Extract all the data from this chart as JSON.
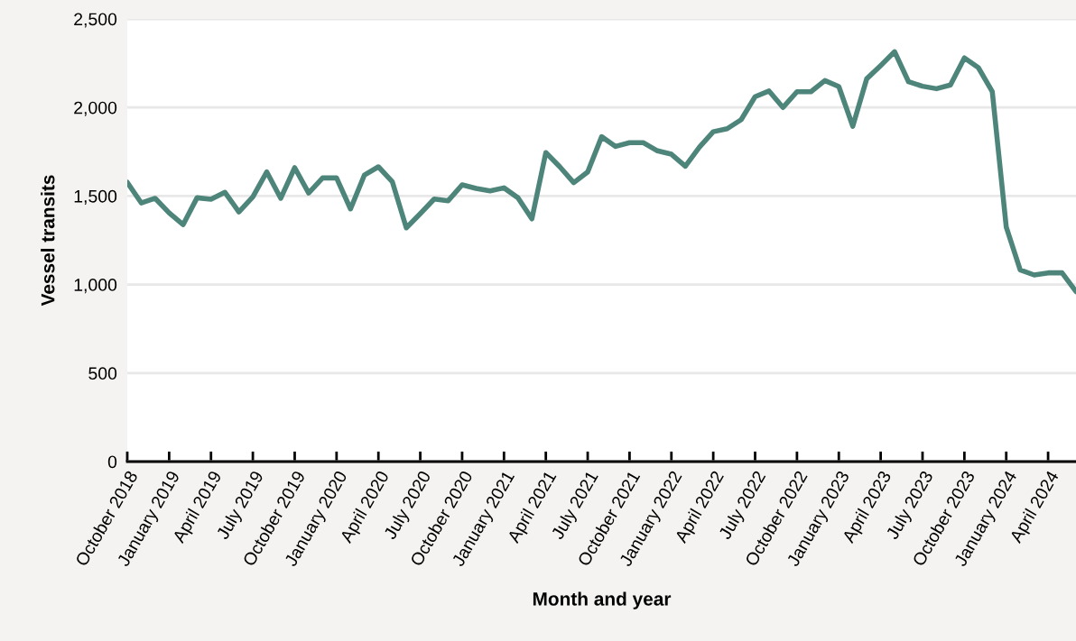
{
  "chart_data": {
    "type": "line",
    "xlabel": "Month and year",
    "ylabel": "Vessel transits",
    "categories": [
      "October 2018",
      null,
      null,
      "January 2019",
      null,
      null,
      "April 2019",
      null,
      null,
      "July 2019",
      null,
      null,
      "October 2019",
      null,
      null,
      "January 2020",
      null,
      null,
      "April 2020",
      null,
      null,
      "July 2020",
      null,
      null,
      "October 2020",
      null,
      null,
      "January 2021",
      null,
      null,
      "April 2021",
      null,
      null,
      "July 2021",
      null,
      null,
      "October 2021",
      null,
      null,
      "January 2022",
      null,
      null,
      "April 2022",
      null,
      null,
      "July 2022",
      null,
      null,
      "October 2022",
      null,
      null,
      "January 2023",
      null,
      null,
      "April 2023",
      null,
      null,
      "July 2023",
      null,
      null,
      "October 2023",
      null,
      null,
      "January 2024",
      null,
      null,
      "April 2024",
      null,
      null
    ],
    "series": [
      {
        "color": "#4e857b",
        "values": [
          1577,
          1461,
          1487,
          1405,
          1338,
          1490,
          1482,
          1521,
          1410,
          1495,
          1636,
          1487,
          1660,
          1517,
          1602,
          1602,
          1427,
          1619,
          1665,
          1580,
          1320,
          1400,
          1483,
          1473,
          1563,
          1543,
          1529,
          1546,
          1490,
          1371,
          1745,
          1665,
          1575,
          1636,
          1835,
          1780,
          1801,
          1801,
          1755,
          1736,
          1668,
          1775,
          1863,
          1880,
          1931,
          2061,
          2093,
          2000,
          2089,
          2089,
          2152,
          2118,
          1894,
          2162,
          2237,
          2315,
          2145,
          2120,
          2106,
          2127,
          2280,
          2225,
          2089,
          1325,
          1083,
          1054,
          1066,
          1066,
          960
        ]
      }
    ],
    "ylim": [
      0,
      2500
    ],
    "yticks": [
      {
        "value": 0,
        "label": "0"
      },
      {
        "value": 500,
        "label": "500"
      },
      {
        "value": 1000,
        "label": "1,000"
      },
      {
        "value": 1500,
        "label": "1,500"
      },
      {
        "value": 2000,
        "label": "2,000"
      },
      {
        "value": 2500,
        "label": "2,500"
      }
    ],
    "grid": "y",
    "marker": "none",
    "line_style": "solid"
  }
}
